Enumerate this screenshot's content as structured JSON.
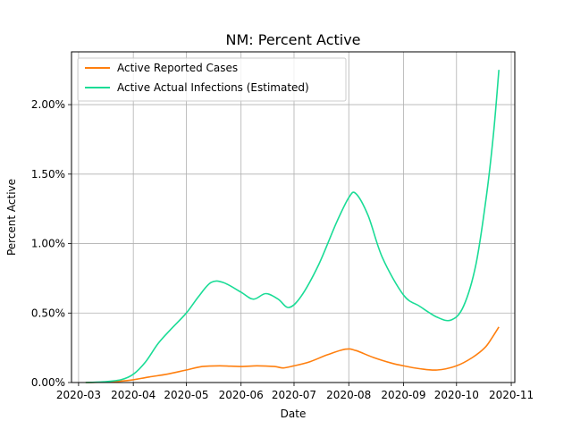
{
  "chart_data": {
    "type": "line",
    "title": "NM: Percent Active",
    "xlabel": "Date",
    "ylabel": "Percent Active",
    "grid": true,
    "legend_position": "top-left",
    "xlim": [
      "2020-02-26",
      "2020-11-03"
    ],
    "ylim": [
      0,
      2.38
    ],
    "x_ticks": [
      "2020-03-01",
      "2020-04-01",
      "2020-05-01",
      "2020-06-01",
      "2020-07-01",
      "2020-08-01",
      "2020-09-01",
      "2020-10-01",
      "2020-11-01"
    ],
    "x_tick_labels": [
      "2020-03",
      "2020-04",
      "2020-05",
      "2020-06",
      "2020-07",
      "2020-08",
      "2020-09",
      "2020-10",
      "2020-11"
    ],
    "y_ticks": [
      0,
      0.5,
      1.0,
      1.5,
      2.0
    ],
    "y_tick_labels": [
      "0.00%",
      "0.50%",
      "1.00%",
      "1.50%",
      "2.00%"
    ],
    "series": [
      {
        "name": "Active Reported Cases",
        "color": "#ff7f0e",
        "points": [
          [
            "2020-03-05",
            0.0
          ],
          [
            "2020-03-15",
            0.003
          ],
          [
            "2020-03-25",
            0.01
          ],
          [
            "2020-04-01",
            0.02
          ],
          [
            "2020-04-10",
            0.04
          ],
          [
            "2020-04-20",
            0.06
          ],
          [
            "2020-05-01",
            0.09
          ],
          [
            "2020-05-10",
            0.115
          ],
          [
            "2020-05-20",
            0.12
          ],
          [
            "2020-06-01",
            0.115
          ],
          [
            "2020-06-10",
            0.12
          ],
          [
            "2020-06-20",
            0.115
          ],
          [
            "2020-06-25",
            0.105
          ],
          [
            "2020-07-01",
            0.12
          ],
          [
            "2020-07-10",
            0.15
          ],
          [
            "2020-07-20",
            0.2
          ],
          [
            "2020-07-30",
            0.24
          ],
          [
            "2020-08-05",
            0.23
          ],
          [
            "2020-08-15",
            0.18
          ],
          [
            "2020-08-25",
            0.14
          ],
          [
            "2020-09-01",
            0.12
          ],
          [
            "2020-09-10",
            0.1
          ],
          [
            "2020-09-20",
            0.09
          ],
          [
            "2020-10-01",
            0.12
          ],
          [
            "2020-10-10",
            0.18
          ],
          [
            "2020-10-17",
            0.25
          ],
          [
            "2020-10-21",
            0.32
          ],
          [
            "2020-10-25",
            0.4
          ]
        ]
      },
      {
        "name": "Active Actual Infections (Estimated)",
        "color": "#1adc96",
        "points": [
          [
            "2020-03-05",
            0.0
          ],
          [
            "2020-03-15",
            0.005
          ],
          [
            "2020-03-25",
            0.02
          ],
          [
            "2020-04-01",
            0.06
          ],
          [
            "2020-04-08",
            0.15
          ],
          [
            "2020-04-15",
            0.28
          ],
          [
            "2020-04-22",
            0.38
          ],
          [
            "2020-05-01",
            0.5
          ],
          [
            "2020-05-08",
            0.62
          ],
          [
            "2020-05-15",
            0.72
          ],
          [
            "2020-05-22",
            0.72
          ],
          [
            "2020-06-01",
            0.65
          ],
          [
            "2020-06-08",
            0.6
          ],
          [
            "2020-06-15",
            0.64
          ],
          [
            "2020-06-22",
            0.6
          ],
          [
            "2020-06-28",
            0.54
          ],
          [
            "2020-07-05",
            0.62
          ],
          [
            "2020-07-15",
            0.85
          ],
          [
            "2020-07-25",
            1.15
          ],
          [
            "2020-08-01",
            1.33
          ],
          [
            "2020-08-05",
            1.36
          ],
          [
            "2020-08-12",
            1.2
          ],
          [
            "2020-08-20",
            0.9
          ],
          [
            "2020-09-01",
            0.63
          ],
          [
            "2020-09-10",
            0.55
          ],
          [
            "2020-09-20",
            0.47
          ],
          [
            "2020-09-28",
            0.45
          ],
          [
            "2020-10-05",
            0.55
          ],
          [
            "2020-10-12",
            0.85
          ],
          [
            "2020-10-18",
            1.35
          ],
          [
            "2020-10-22",
            1.8
          ],
          [
            "2020-10-25",
            2.25
          ]
        ]
      }
    ]
  }
}
